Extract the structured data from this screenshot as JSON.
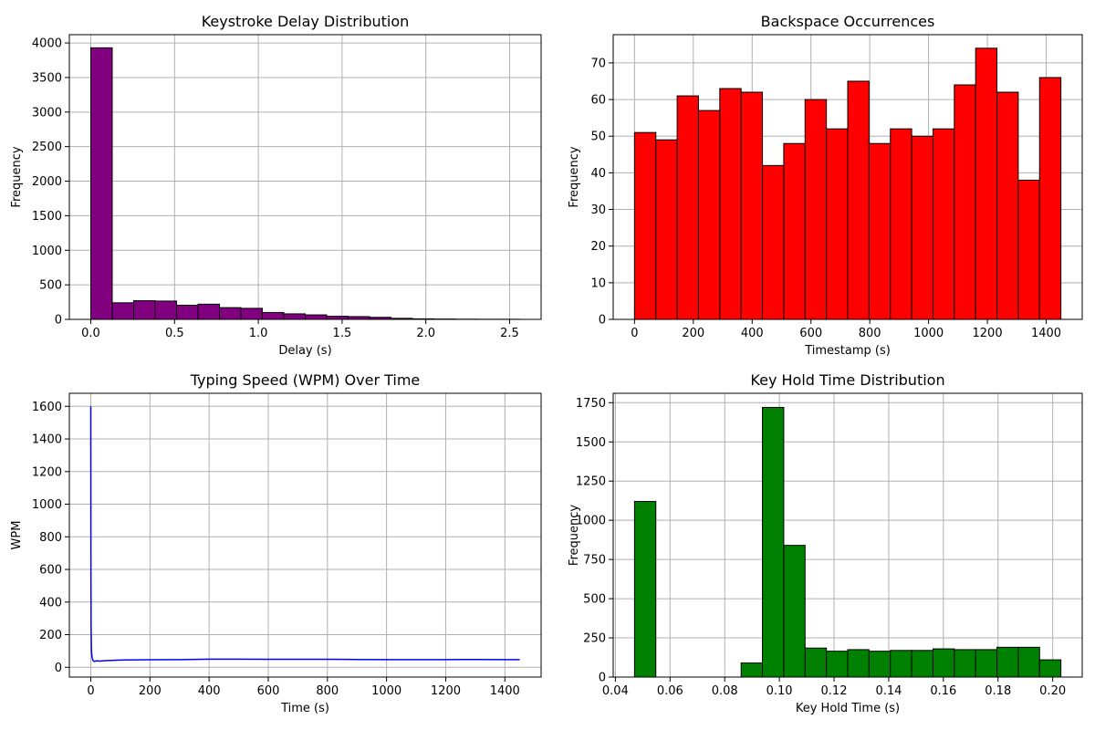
{
  "chart_data": [
    {
      "type": "bar",
      "title": "Keystroke Delay Distribution",
      "xlabel": "Delay (s)",
      "ylabel": "Frequency",
      "xlim": [
        -0.128,
        2.688
      ],
      "ylim": [
        0,
        4120
      ],
      "xticks": [
        "0.0",
        "0.5",
        "1.0",
        "1.5",
        "2.0",
        "2.5"
      ],
      "yticks": [
        "0",
        "500",
        "1000",
        "1500",
        "2000",
        "2500",
        "3000",
        "3500",
        "4000"
      ],
      "color": "#800080",
      "bins": {
        "start": 0.0,
        "width": 0.128,
        "counts": [
          3930,
          240,
          270,
          265,
          205,
          220,
          170,
          160,
          100,
          80,
          65,
          45,
          40,
          30,
          15,
          8,
          5,
          3,
          2,
          2
        ]
      },
      "grid": true
    },
    {
      "type": "bar",
      "title": "Backspace Occurrences",
      "xlabel": "Timestamp (s)",
      "ylabel": "Frequency",
      "xlim": [
        -72.5,
        1522.5
      ],
      "ylim": [
        0,
        77.7
      ],
      "xticks": [
        "0",
        "200",
        "400",
        "600",
        "800",
        "1000",
        "1200",
        "1400"
      ],
      "yticks": [
        "0",
        "10",
        "20",
        "30",
        "40",
        "50",
        "60",
        "70"
      ],
      "color": "#ff0000",
      "bins": {
        "start": 0,
        "width": 72.5,
        "counts": [
          51,
          49,
          61,
          57,
          63,
          62,
          42,
          48,
          60,
          52,
          65,
          48,
          52,
          50,
          52,
          64,
          74,
          62,
          38,
          66
        ]
      },
      "grid": true
    },
    {
      "type": "line",
      "title": "Typing Speed (WPM) Over Time",
      "xlabel": "Time (s)",
      "ylabel": "WPM",
      "xlim": [
        -72.5,
        1522.5
      ],
      "ylim": [
        -60,
        1680
      ],
      "xticks": [
        "0",
        "200",
        "400",
        "600",
        "800",
        "1000",
        "1200",
        "1400"
      ],
      "yticks": [
        "0",
        "200",
        "400",
        "600",
        "800",
        "1000",
        "1200",
        "1400",
        "1600"
      ],
      "color": "#0000ff",
      "series": [
        {
          "x": [
            0,
            0.5,
            1,
            2,
            3,
            5,
            8,
            12,
            20,
            30,
            50,
            80,
            120,
            200,
            300,
            400,
            500,
            600,
            700,
            800,
            900,
            1000,
            1100,
            1200,
            1300,
            1400,
            1450
          ],
          "y": [
            1600,
            600,
            250,
            120,
            80,
            55,
            40,
            36,
            40,
            38,
            41,
            43,
            45,
            46,
            47,
            50,
            50,
            49,
            49,
            49,
            48,
            47,
            47,
            47,
            48,
            47,
            47
          ]
        }
      ],
      "grid": true
    },
    {
      "type": "bar",
      "title": "Key Hold Time Distribution",
      "xlabel": "Key Hold Time (s)",
      "ylabel": "Frequency",
      "xlim": [
        0.0392,
        0.2108
      ],
      "ylim": [
        0,
        1810
      ],
      "xticks": [
        "0.04",
        "0.06",
        "0.08",
        "0.10",
        "0.12",
        "0.14",
        "0.16",
        "0.18",
        "0.20"
      ],
      "yticks": [
        "0",
        "250",
        "500",
        "750",
        "1000",
        "1250",
        "1500",
        "1750"
      ],
      "color": "#008000",
      "bins": {
        "start": 0.047,
        "width": 0.0078,
        "counts": [
          1120,
          0,
          0,
          0,
          0,
          90,
          1720,
          840,
          185,
          165,
          175,
          165,
          170,
          170,
          180,
          175,
          175,
          190,
          190,
          110
        ]
      },
      "grid": true
    }
  ]
}
